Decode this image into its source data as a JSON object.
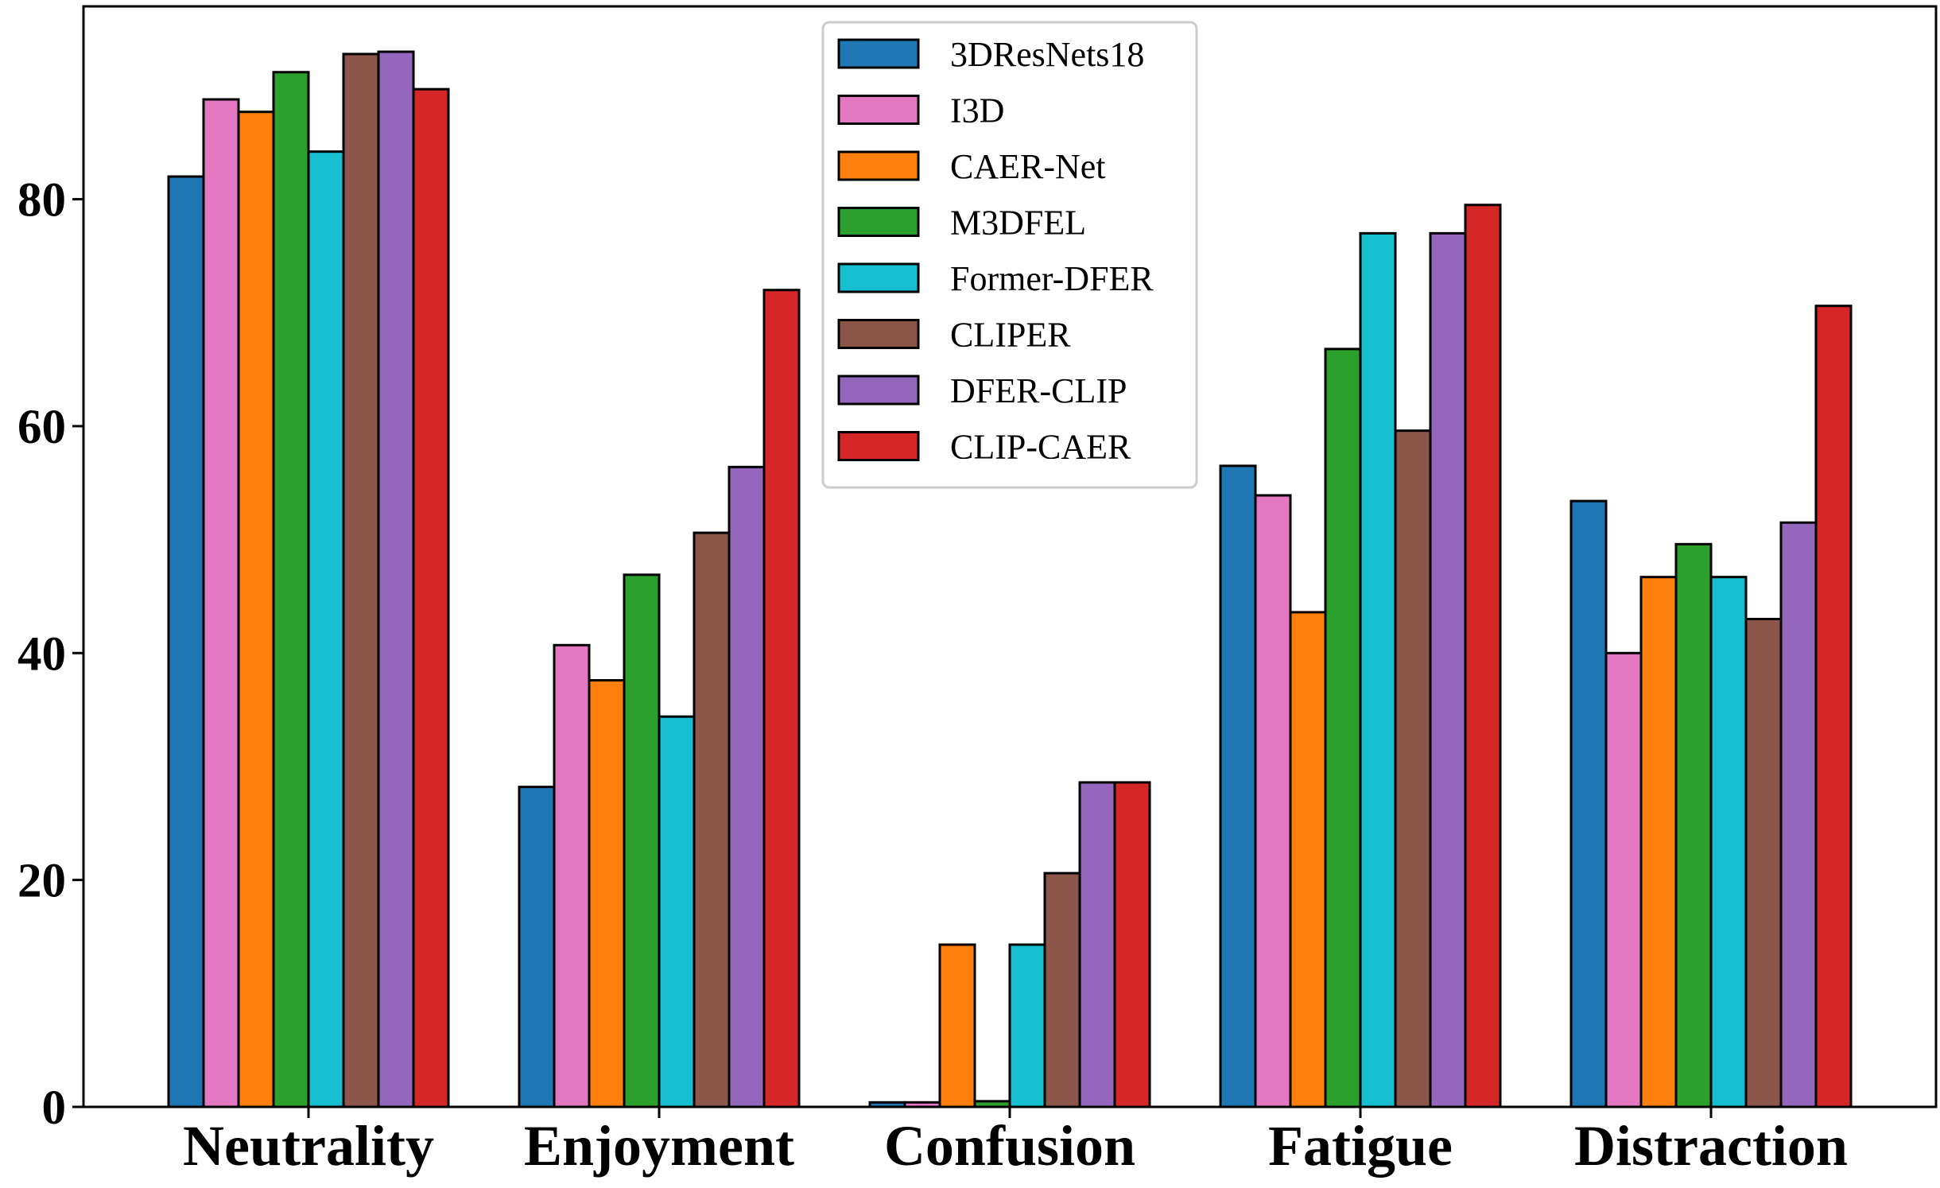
{
  "chart_data": {
    "type": "bar",
    "title": "",
    "xlabel": "",
    "ylabel": "",
    "ylim": [
      0,
      97
    ],
    "yticks": [
      0,
      20,
      40,
      60,
      80
    ],
    "categories": [
      "Neutrality",
      "Enjoyment",
      "Confusion",
      "Fatigue",
      "Distraction"
    ],
    "legend_position": "top-center",
    "grid": false,
    "series": [
      {
        "name": "3DResNets18",
        "color": "#1f77b4",
        "values": [
          82.0,
          28.2,
          0.4,
          56.5,
          53.4
        ]
      },
      {
        "name": "I3D",
        "color": "#e377c2",
        "values": [
          88.8,
          40.7,
          0.4,
          53.9,
          40.0
        ]
      },
      {
        "name": "CAER-Net",
        "color": "#ff7f0e",
        "values": [
          87.7,
          37.6,
          14.3,
          43.6,
          46.7
        ]
      },
      {
        "name": "M3DFEL",
        "color": "#2ca02c",
        "values": [
          91.2,
          46.9,
          0.5,
          66.8,
          49.6
        ]
      },
      {
        "name": "Former-DFER",
        "color": "#17becf",
        "values": [
          84.2,
          34.4,
          14.3,
          77.0,
          46.7
        ]
      },
      {
        "name": "CLIPER",
        "color": "#8c564b",
        "values": [
          92.8,
          50.6,
          20.6,
          59.6,
          43.0
        ]
      },
      {
        "name": "DFER-CLIP",
        "color": "#9467bd",
        "values": [
          93.0,
          56.4,
          28.6,
          77.0,
          51.5
        ]
      },
      {
        "name": "CLIP-CAER",
        "color": "#d62728",
        "values": [
          89.7,
          72.0,
          28.6,
          79.5,
          70.6
        ]
      }
    ]
  }
}
